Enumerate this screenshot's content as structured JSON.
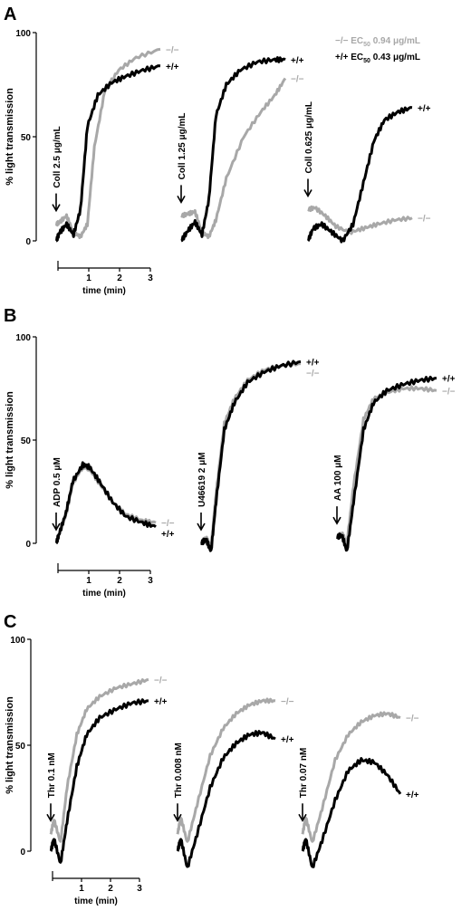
{
  "figure": {
    "legend_ko": "−/−  EC",
    "legend_ko_sub": "50",
    "legend_ko_rest": " 0.94  μg/mL",
    "legend_wt": "+/+  EC",
    "legend_wt_sub": "50",
    "legend_wt_rest": " 0.43  μg/mL"
  },
  "colors": {
    "wt": "#000000",
    "ko": "#a8a8a8"
  },
  "chart_data": [
    {
      "type": "line",
      "panel": "A",
      "ylabel": "% light transmission",
      "xlabel": "time (min)",
      "ylim": [
        0,
        100
      ],
      "yticks": [
        "0",
        "50",
        "100"
      ],
      "xlim": [
        0,
        3
      ],
      "xticks": [
        "1",
        "2",
        "3"
      ],
      "traces": [
        {
          "agonist": "Coll 2.5 μg/mL",
          "wt_label": "+/+",
          "ko_label": "−/−",
          "wt": [
            [
              0,
              0
            ],
            [
              0.1,
              4
            ],
            [
              0.3,
              8
            ],
            [
              0.5,
              3
            ],
            [
              0.7,
              15
            ],
            [
              0.9,
              55
            ],
            [
              1.2,
              70
            ],
            [
              1.6,
              76
            ],
            [
              2,
              79
            ],
            [
              2.5,
              82
            ],
            [
              3,
              84
            ]
          ],
          "ko": [
            [
              0,
              8
            ],
            [
              0.1,
              9
            ],
            [
              0.3,
              12
            ],
            [
              0.5,
              4
            ],
            [
              0.7,
              2
            ],
            [
              0.9,
              8
            ],
            [
              1.1,
              45
            ],
            [
              1.4,
              72
            ],
            [
              1.8,
              82
            ],
            [
              2.3,
              88
            ],
            [
              3,
              92
            ]
          ]
        },
        {
          "agonist": "Coll 1.25 μg/mL",
          "wt_label": "+/+",
          "ko_label": "−/−",
          "wt": [
            [
              0,
              0
            ],
            [
              0.2,
              5
            ],
            [
              0.4,
              9
            ],
            [
              0.6,
              3
            ],
            [
              0.8,
              20
            ],
            [
              1,
              60
            ],
            [
              1.3,
              75
            ],
            [
              1.7,
              82
            ],
            [
              2.2,
              86
            ],
            [
              2.7,
              87
            ],
            [
              3,
              87
            ]
          ],
          "ko": [
            [
              0,
              12
            ],
            [
              0.2,
              13
            ],
            [
              0.4,
              14
            ],
            [
              0.6,
              4
            ],
            [
              0.8,
              2
            ],
            [
              1,
              10
            ],
            [
              1.3,
              30
            ],
            [
              1.8,
              50
            ],
            [
              2.3,
              62
            ],
            [
              2.7,
              70
            ],
            [
              3,
              78
            ]
          ]
        },
        {
          "agonist": "Coll 0.625 μg/mL",
          "wt_label": "+/+",
          "ko_label": "−/−",
          "wt": [
            [
              0,
              0
            ],
            [
              0.15,
              6
            ],
            [
              0.4,
              8
            ],
            [
              0.7,
              4
            ],
            [
              1,
              0
            ],
            [
              1.3,
              8
            ],
            [
              1.6,
              28
            ],
            [
              1.9,
              48
            ],
            [
              2.2,
              58
            ],
            [
              2.6,
              62
            ],
            [
              3,
              64
            ]
          ],
          "ko": [
            [
              0,
              15
            ],
            [
              0.2,
              16
            ],
            [
              0.5,
              12
            ],
            [
              0.8,
              7
            ],
            [
              1.2,
              4
            ],
            [
              1.6,
              6
            ],
            [
              2,
              8
            ],
            [
              2.5,
              10
            ],
            [
              3,
              11
            ]
          ]
        }
      ]
    },
    {
      "type": "line",
      "panel": "B",
      "ylabel": "% light transmission",
      "xlabel": "time (min)",
      "ylim": [
        0,
        100
      ],
      "yticks": [
        "0",
        "50",
        "100"
      ],
      "xlim": [
        0,
        3
      ],
      "xticks": [
        "1",
        "2",
        "3"
      ],
      "traces": [
        {
          "agonist": "ADP  0.5 μM",
          "wt_label": "+/+",
          "ko_label": "−/−",
          "wt": [
            [
              0,
              0
            ],
            [
              0.1,
              5
            ],
            [
              0.3,
              15
            ],
            [
              0.5,
              30
            ],
            [
              0.8,
              38
            ],
            [
              1,
              37
            ],
            [
              1.3,
              30
            ],
            [
              1.7,
              20
            ],
            [
              2.1,
              13
            ],
            [
              2.6,
              10
            ],
            [
              3,
              8
            ]
          ],
          "ko": [
            [
              0,
              0
            ],
            [
              0.1,
              5
            ],
            [
              0.3,
              14
            ],
            [
              0.5,
              29
            ],
            [
              0.8,
              37
            ],
            [
              1,
              36
            ],
            [
              1.3,
              29
            ],
            [
              1.7,
              20
            ],
            [
              2.1,
              14
            ],
            [
              2.6,
              11
            ],
            [
              3,
              10
            ]
          ]
        },
        {
          "agonist": "U46619  2 μM",
          "wt_label": "+/+",
          "ko_label": "−/−",
          "wt": [
            [
              0,
              0
            ],
            [
              0.15,
              2
            ],
            [
              0.3,
              -4
            ],
            [
              0.45,
              20
            ],
            [
              0.7,
              55
            ],
            [
              1,
              68
            ],
            [
              1.4,
              78
            ],
            [
              1.9,
              83
            ],
            [
              2.4,
              86
            ],
            [
              3,
              88
            ]
          ],
          "ko": [
            [
              0,
              0
            ],
            [
              0.15,
              3
            ],
            [
              0.3,
              -2
            ],
            [
              0.45,
              24
            ],
            [
              0.7,
              58
            ],
            [
              1,
              70
            ],
            [
              1.4,
              79
            ],
            [
              1.9,
              84
            ],
            [
              2.4,
              86
            ],
            [
              3,
              87
            ]
          ]
        },
        {
          "agonist": "AA  100 μM",
          "wt_label": "+/+",
          "ko_label": "−/−",
          "wt": [
            [
              0,
              3
            ],
            [
              0.15,
              4
            ],
            [
              0.3,
              -4
            ],
            [
              0.5,
              20
            ],
            [
              0.8,
              55
            ],
            [
              1.1,
              68
            ],
            [
              1.5,
              74
            ],
            [
              2,
              77
            ],
            [
              2.5,
              79
            ],
            [
              3,
              80
            ]
          ],
          "ko": [
            [
              0,
              3
            ],
            [
              0.15,
              5
            ],
            [
              0.3,
              0
            ],
            [
              0.5,
              28
            ],
            [
              0.8,
              60
            ],
            [
              1.1,
              70
            ],
            [
              1.5,
              73
            ],
            [
              2,
              75
            ],
            [
              2.5,
              75
            ],
            [
              3,
              74
            ]
          ]
        }
      ]
    },
    {
      "type": "line",
      "panel": "C",
      "ylabel": "% light transmission",
      "xlabel": "time (min)",
      "ylim": [
        0,
        100
      ],
      "yticks": [
        "0",
        "50",
        "100"
      ],
      "xlim": [
        0,
        3
      ],
      "xticks": [
        "1",
        "2",
        "3"
      ],
      "traces": [
        {
          "agonist": "Thr  0.1 nM",
          "wt_label": "+/+",
          "ko_label": "−/−",
          "wt": [
            [
              0,
              0
            ],
            [
              0.1,
              6
            ],
            [
              0.3,
              -6
            ],
            [
              0.5,
              14
            ],
            [
              0.8,
              40
            ],
            [
              1.1,
              55
            ],
            [
              1.5,
              63
            ],
            [
              2,
              67
            ],
            [
              2.5,
              70
            ],
            [
              3,
              71
            ]
          ],
          "ko": [
            [
              0,
              8
            ],
            [
              0.1,
              15
            ],
            [
              0.3,
              4
            ],
            [
              0.5,
              30
            ],
            [
              0.8,
              55
            ],
            [
              1.1,
              67
            ],
            [
              1.5,
              73
            ],
            [
              2,
              77
            ],
            [
              2.5,
              79
            ],
            [
              3,
              81
            ]
          ]
        },
        {
          "agonist": "Thr  0.008 nM",
          "wt_label": "+/+",
          "ko_label": "−/−",
          "wt": [
            [
              0,
              0
            ],
            [
              0.1,
              6
            ],
            [
              0.3,
              -8
            ],
            [
              0.6,
              8
            ],
            [
              1,
              30
            ],
            [
              1.4,
              44
            ],
            [
              1.8,
              51
            ],
            [
              2.2,
              55
            ],
            [
              2.6,
              56
            ],
            [
              3,
              53
            ]
          ],
          "ko": [
            [
              0,
              8
            ],
            [
              0.1,
              16
            ],
            [
              0.3,
              4
            ],
            [
              0.6,
              22
            ],
            [
              1,
              45
            ],
            [
              1.4,
              58
            ],
            [
              1.8,
              65
            ],
            [
              2.2,
              69
            ],
            [
              2.6,
              71
            ],
            [
              3,
              71
            ]
          ]
        },
        {
          "agonist": "Thr  0.07 nM",
          "wt_label": "+/+",
          "ko_label": "−/−",
          "wt": [
            [
              0,
              0
            ],
            [
              0.1,
              6
            ],
            [
              0.3,
              -8
            ],
            [
              0.6,
              5
            ],
            [
              1,
              24
            ],
            [
              1.4,
              38
            ],
            [
              1.8,
              43
            ],
            [
              2.2,
              42
            ],
            [
              2.6,
              36
            ],
            [
              3,
              27
            ]
          ],
          "ko": [
            [
              0,
              8
            ],
            [
              0.1,
              16
            ],
            [
              0.3,
              4
            ],
            [
              0.6,
              20
            ],
            [
              1,
              43
            ],
            [
              1.4,
              55
            ],
            [
              1.8,
              61
            ],
            [
              2.2,
              64
            ],
            [
              2.6,
              65
            ],
            [
              3,
              63
            ]
          ]
        }
      ]
    }
  ]
}
